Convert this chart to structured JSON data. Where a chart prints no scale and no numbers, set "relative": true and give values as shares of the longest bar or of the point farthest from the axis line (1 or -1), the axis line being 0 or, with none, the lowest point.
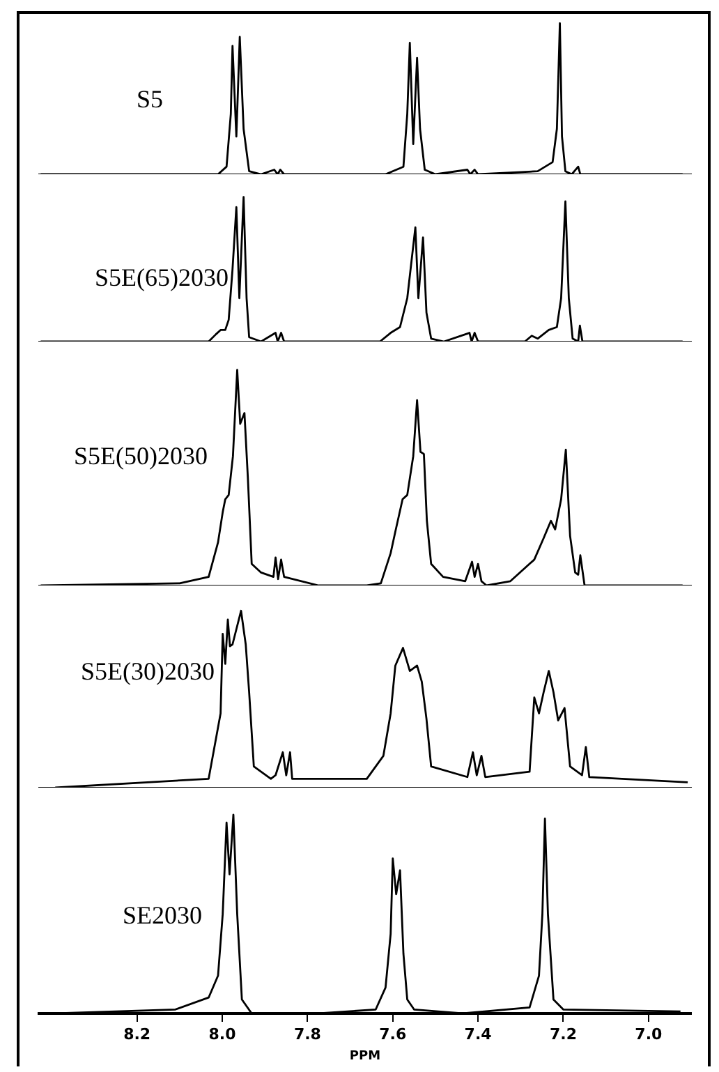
{
  "chart_data": [
    {
      "type": "line",
      "relative": true,
      "xlim": [
        8.43,
        6.9
      ],
      "tick_labels": false,
      "legend": false,
      "marker": "none",
      "series": [
        {
          "name": "S5",
          "color": "#000000",
          "x": [
            8.426,
            8.01,
            7.99,
            7.98,
            7.976,
            7.967,
            7.959,
            7.95,
            7.937,
            7.909,
            7.878,
            7.87,
            7.864,
            7.855,
            7.617,
            7.575,
            7.566,
            7.56,
            7.552,
            7.543,
            7.536,
            7.525,
            7.5,
            7.425,
            7.418,
            7.408,
            7.4,
            7.26,
            7.225,
            7.215,
            7.208,
            7.203,
            7.195,
            7.18,
            7.165,
            7.16,
            6.92
          ],
          "values": [
            0,
            0,
            0.05,
            0.4,
            0.85,
            0.25,
            0.91,
            0.3,
            0.02,
            0,
            0.03,
            0,
            0.03,
            0,
            0,
            0.05,
            0.4,
            0.87,
            0.2,
            0.77,
            0.3,
            0.03,
            0,
            0.03,
            0,
            0.03,
            0,
            0.02,
            0.08,
            0.3,
            1,
            0.25,
            0.02,
            0,
            0.05,
            0,
            0
          ]
        }
      ]
    },
    {
      "type": "line",
      "relative": true,
      "xlim": [
        8.43,
        6.9
      ],
      "tick_labels": false,
      "legend": false,
      "marker": "none",
      "series": [
        {
          "name": "S5E(65)2030",
          "color": "#000000",
          "x": [
            8.426,
            8.032,
            8.015,
            8.004,
            7.993,
            7.985,
            7.976,
            7.967,
            7.96,
            7.95,
            7.943,
            7.937,
            7.909,
            7.875,
            7.87,
            7.862,
            7.855,
            7.63,
            7.605,
            7.583,
            7.566,
            7.547,
            7.54,
            7.529,
            7.521,
            7.51,
            7.48,
            7.42,
            7.415,
            7.408,
            7.4,
            7.29,
            7.274,
            7.26,
            7.234,
            7.215,
            7.205,
            7.195,
            7.187,
            7.178,
            7.165,
            7.161,
            7.155,
            6.92
          ],
          "values": [
            0,
            0,
            0.05,
            0.08,
            0.08,
            0.15,
            0.5,
            0.93,
            0.3,
            1,
            0.3,
            0.03,
            0,
            0.06,
            0,
            0.06,
            0,
            0,
            0.06,
            0.1,
            0.3,
            0.79,
            0.3,
            0.72,
            0.2,
            0.02,
            0,
            0.06,
            0,
            0.06,
            0,
            0,
            0.04,
            0.02,
            0.08,
            0.1,
            0.3,
            0.97,
            0.3,
            0.02,
            0,
            0.11,
            0,
            0
          ]
        }
      ]
    },
    {
      "type": "line",
      "relative": true,
      "xlim": [
        8.43,
        6.9
      ],
      "tick_labels": false,
      "legend": false,
      "marker": "none",
      "series": [
        {
          "name": "S5E(50)2030",
          "color": "#000000",
          "x": [
            8.426,
            8.1,
            8.032,
            8.01,
            7.999,
            7.993,
            7.985,
            7.975,
            7.965,
            7.958,
            7.948,
            7.94,
            7.931,
            7.909,
            7.88,
            7.875,
            7.869,
            7.862,
            7.855,
            7.774,
            7.661,
            7.628,
            7.605,
            7.594,
            7.577,
            7.566,
            7.552,
            7.543,
            7.535,
            7.527,
            7.52,
            7.51,
            7.482,
            7.43,
            7.414,
            7.408,
            7.4,
            7.392,
            7.38,
            7.324,
            7.268,
            7.246,
            7.229,
            7.219,
            7.205,
            7.194,
            7.184,
            7.172,
            7.165,
            7.16,
            7.15,
            6.92
          ],
          "values": [
            0,
            0.01,
            0.04,
            0.2,
            0.34,
            0.4,
            0.42,
            0.6,
            1,
            0.75,
            0.8,
            0.5,
            0.1,
            0.06,
            0.04,
            0.13,
            0.03,
            0.12,
            0.04,
            0,
            0,
            0.01,
            0.15,
            0.25,
            0.4,
            0.42,
            0.6,
            0.86,
            0.62,
            0.61,
            0.3,
            0.1,
            0.04,
            0.02,
            0.11,
            0.04,
            0.1,
            0.02,
            0,
            0.02,
            0.12,
            0.22,
            0.3,
            0.26,
            0.4,
            0.63,
            0.23,
            0.06,
            0.05,
            0.14,
            0,
            0
          ]
        }
      ]
    },
    {
      "type": "line",
      "relative": true,
      "xlim": [
        8.43,
        6.9
      ],
      "tick_labels": false,
      "legend": false,
      "marker": "none",
      "series": [
        {
          "name": "S5E(30)2030",
          "color": "#000000",
          "x": [
            8.392,
            8.032,
            8.004,
            7.999,
            7.993,
            7.987,
            7.982,
            7.976,
            7.956,
            7.945,
            7.937,
            7.926,
            7.886,
            7.875,
            7.858,
            7.85,
            7.841,
            7.836,
            7.661,
            7.622,
            7.605,
            7.594,
            7.576,
            7.56,
            7.543,
            7.532,
            7.521,
            7.51,
            7.425,
            7.412,
            7.403,
            7.392,
            7.383,
            7.279,
            7.268,
            7.257,
            7.246,
            7.234,
            7.223,
            7.212,
            7.197,
            7.184,
            7.156,
            7.147,
            7.139,
            6.908
          ],
          "values": [
            0,
            0.05,
            0.42,
            0.87,
            0.7,
            0.95,
            0.8,
            0.81,
            1,
            0.81,
            0.54,
            0.12,
            0.05,
            0.07,
            0.2,
            0.07,
            0.2,
            0.05,
            0.05,
            0.18,
            0.42,
            0.69,
            0.79,
            0.66,
            0.69,
            0.6,
            0.39,
            0.12,
            0.06,
            0.2,
            0.07,
            0.18,
            0.06,
            0.09,
            0.51,
            0.42,
            0.54,
            0.66,
            0.54,
            0.38,
            0.45,
            0.12,
            0.07,
            0.23,
            0.06,
            0.03
          ]
        }
      ]
    },
    {
      "type": "line",
      "relative": true,
      "xlim": [
        8.43,
        6.9
      ],
      "xticks": [
        8.2,
        {
          "value": 8,
          "label": "8.0"
        },
        7.8,
        7.6,
        7.4,
        7.2,
        {
          "value": 7,
          "label": "7.0"
        }
      ],
      "xlabel": "PPM",
      "tick_labels": "x",
      "legend": false,
      "marker": "none",
      "series": [
        {
          "name": "SE2030",
          "color": "#000000",
          "x": [
            8.392,
            8.11,
            8.032,
            8.01,
            7.999,
            7.99,
            7.983,
            7.974,
            7.965,
            7.954,
            7.931,
            7.774,
            7.64,
            7.617,
            7.605,
            7.6,
            7.592,
            7.583,
            7.575,
            7.566,
            7.55,
            7.436,
            7.279,
            7.257,
            7.249,
            7.243,
            7.236,
            7.223,
            7.2,
            6.925
          ],
          "values": [
            0,
            0.02,
            0.08,
            0.19,
            0.5,
            0.96,
            0.7,
            1,
            0.5,
            0.07,
            0,
            0,
            0.02,
            0.13,
            0.4,
            0.78,
            0.6,
            0.72,
            0.3,
            0.07,
            0.02,
            0,
            0.03,
            0.19,
            0.5,
            0.98,
            0.5,
            0.07,
            0.02,
            0.01
          ]
        }
      ]
    }
  ]
}
